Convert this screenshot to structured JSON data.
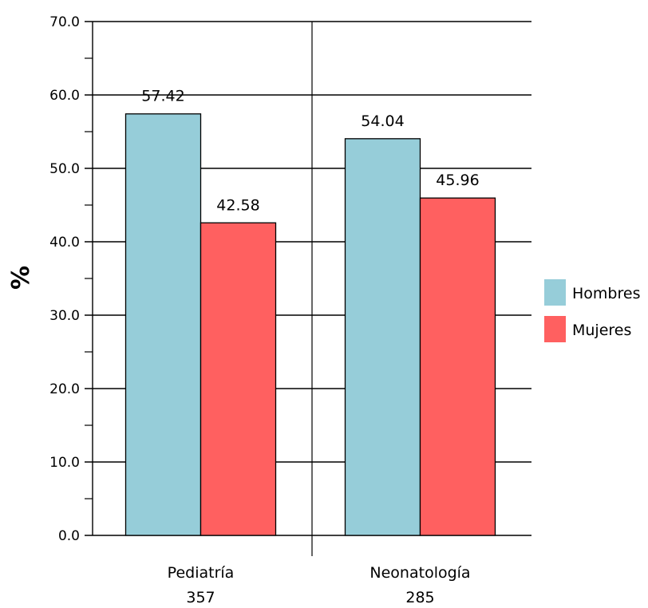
{
  "chart_data": {
    "type": "bar",
    "title": "",
    "xlabel": "",
    "ylabel": "%",
    "ylim": [
      0,
      70
    ],
    "y_ticks": [
      "0.0",
      "10.0",
      "20.0",
      "30.0",
      "40.0",
      "50.0",
      "60.0",
      "70.0"
    ],
    "grid": true,
    "legend_position": "right",
    "categories": [
      "Pediatría",
      "Neonatología"
    ],
    "category_counts": [
      "357",
      "285"
    ],
    "series": [
      {
        "name": "Hombres",
        "color": "#96CDD9",
        "values": [
          57.42,
          54.04
        ],
        "labels": [
          "57.42",
          "54.04"
        ]
      },
      {
        "name": "Mujeres",
        "color": "#FF6060",
        "values": [
          42.58,
          45.96
        ],
        "labels": [
          "42.58",
          "45.96"
        ]
      }
    ]
  }
}
